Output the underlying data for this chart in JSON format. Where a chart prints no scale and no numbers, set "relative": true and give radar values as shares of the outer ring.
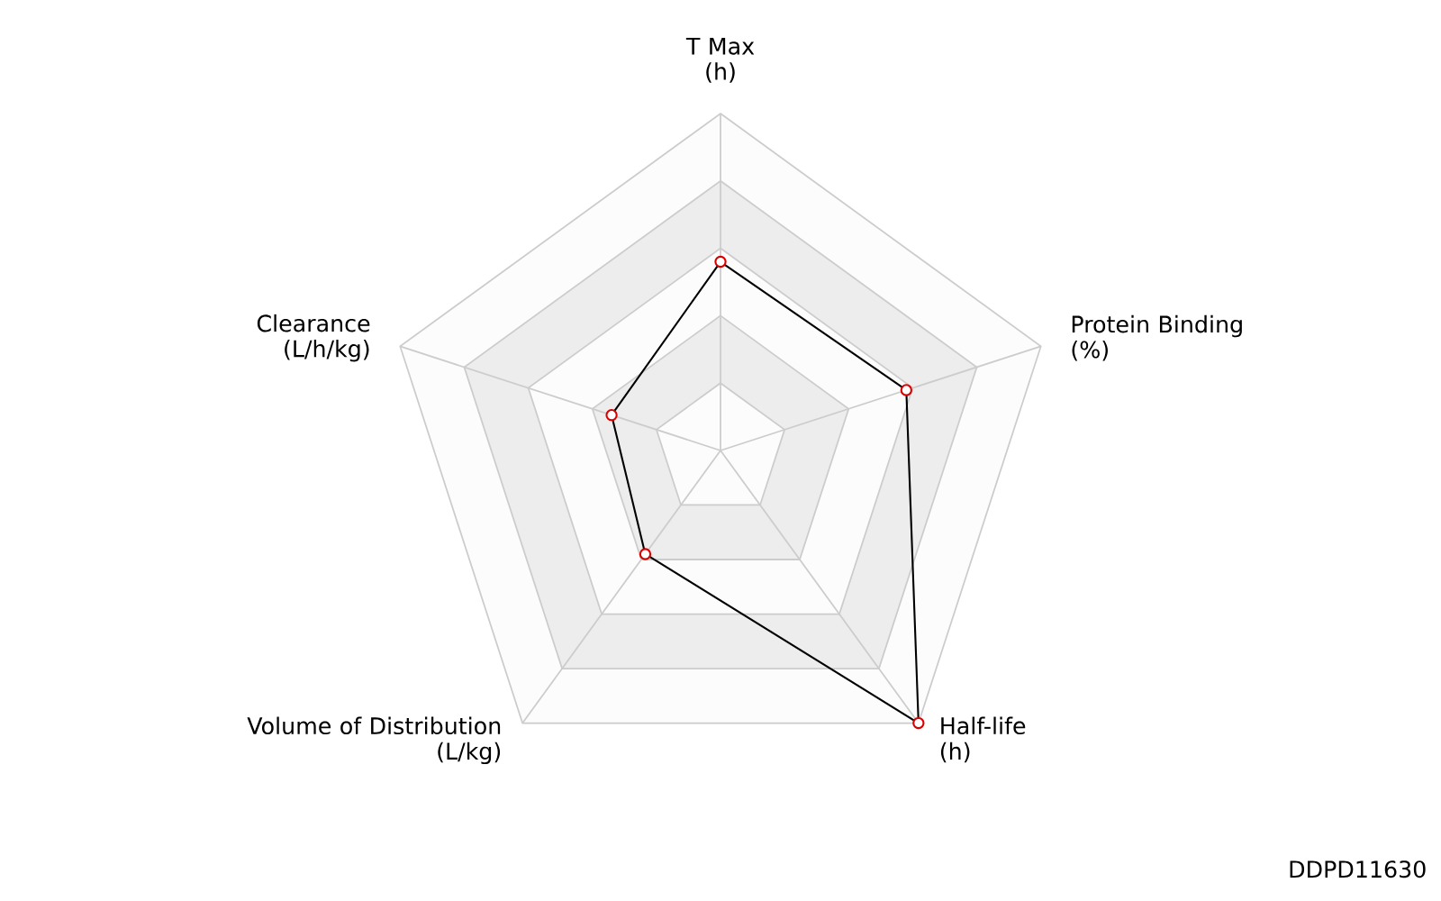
{
  "chart_data": {
    "type": "radar",
    "relative": true,
    "marker": "circle",
    "line_style": "solid",
    "categories": [
      "T Max\n(h)",
      "Protein Binding\n(%)",
      "Half-life\n(h)",
      "Volume of Distribution\n(L/kg)",
      "Clearance\n(L/h/kg)"
    ],
    "series": [
      {
        "color": "#000000",
        "values": [
          0.56,
          0.58,
          1.0,
          0.38,
          0.34
        ]
      }
    ],
    "annotations": [
      "DDPD11630"
    ]
  }
}
